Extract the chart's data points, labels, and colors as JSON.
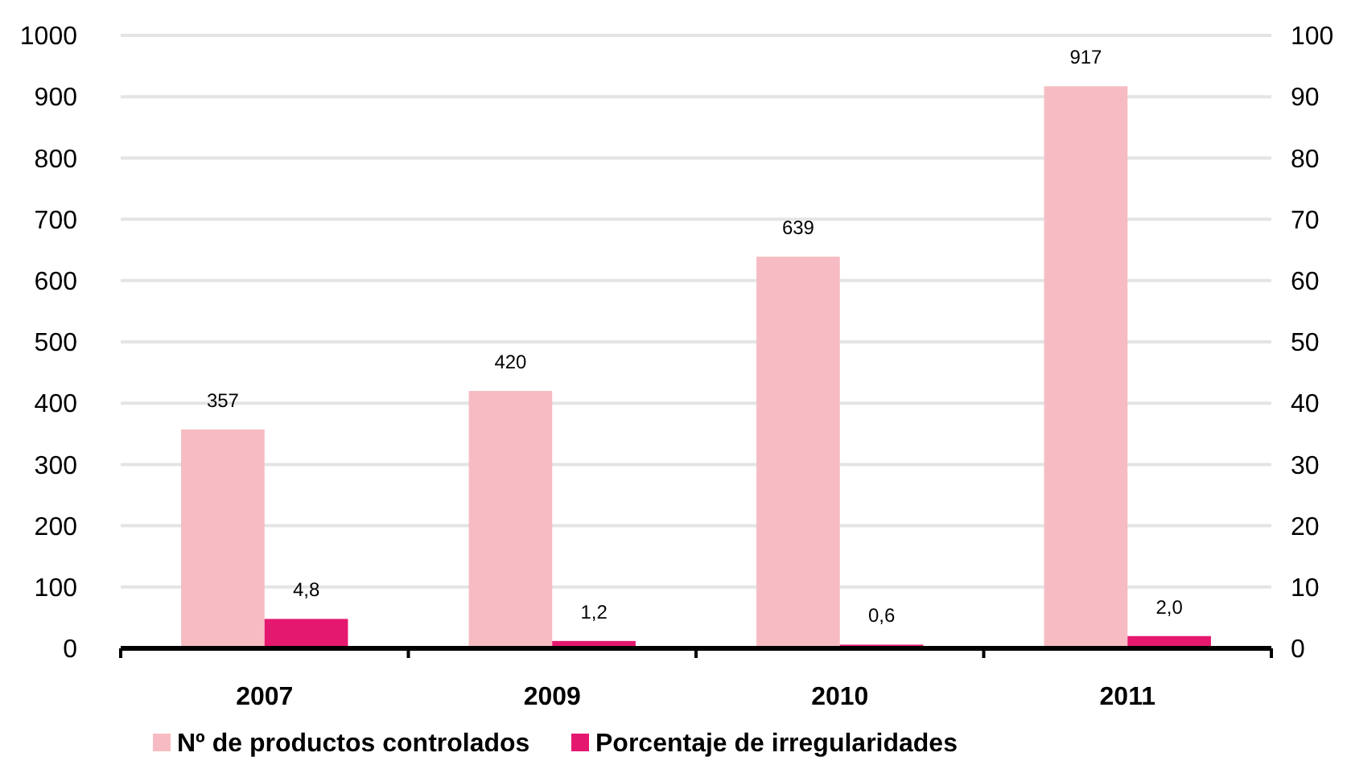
{
  "chart_data": {
    "type": "bar",
    "categories": [
      "2007",
      "2009",
      "2010",
      "2011"
    ],
    "series": [
      {
        "name": "Nº de productos controlados",
        "color": "#f7bcc3",
        "values": [
          357,
          420,
          639,
          917
        ],
        "value_labels": [
          "357",
          "420",
          "639",
          "917"
        ]
      },
      {
        "name": "Porcentaje de irregularidades",
        "color": "#e5186f",
        "values": [
          4.8,
          1.2,
          0.6,
          2.0
        ],
        "value_labels": [
          "4,8",
          "1,2",
          "0,6",
          "2,0"
        ],
        "axis": "y2"
      }
    ],
    "ylim": [
      0,
      1000
    ],
    "yticks": [
      0,
      100,
      200,
      300,
      400,
      500,
      600,
      700,
      800,
      900,
      1000
    ],
    "y2lim": [
      0,
      100
    ],
    "y2ticks": [
      0,
      10,
      20,
      30,
      40,
      50,
      60,
      70,
      80,
      90,
      100
    ],
    "grid": "y",
    "legend": "bottom"
  }
}
